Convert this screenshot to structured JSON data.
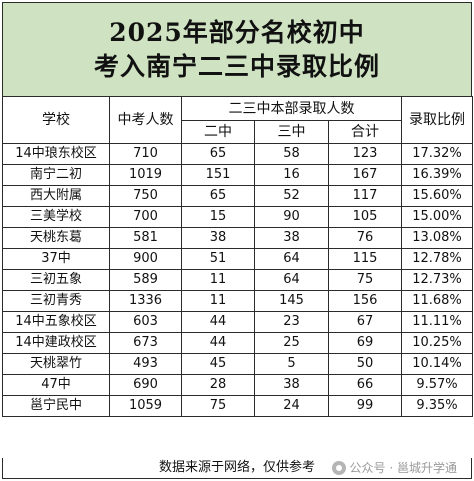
{
  "title": {
    "line1": "2025年部分名校初中",
    "line2": "考入南宁二三中录取比例"
  },
  "headers": {
    "school": "学校",
    "exam_count": "中考人数",
    "group": "二三中本部录取人数",
    "er_zhong": "二中",
    "san_zhong": "三中",
    "total": "合计",
    "ratio": "录取比例"
  },
  "rows": [
    {
      "school": "14中琅东校区",
      "exam": "710",
      "er": "65",
      "san": "58",
      "total": "123",
      "ratio": "17.32%"
    },
    {
      "school": "南宁二初",
      "exam": "1019",
      "er": "151",
      "san": "16",
      "total": "167",
      "ratio": "16.39%"
    },
    {
      "school": "西大附属",
      "exam": "750",
      "er": "65",
      "san": "52",
      "total": "117",
      "ratio": "15.60%"
    },
    {
      "school": "三美学校",
      "exam": "700",
      "er": "15",
      "san": "90",
      "total": "105",
      "ratio": "15.00%"
    },
    {
      "school": "天桃东葛",
      "exam": "581",
      "er": "38",
      "san": "38",
      "total": "76",
      "ratio": "13.08%"
    },
    {
      "school": "37中",
      "exam": "900",
      "er": "51",
      "san": "64",
      "total": "115",
      "ratio": "12.78%"
    },
    {
      "school": "三初五象",
      "exam": "589",
      "er": "11",
      "san": "64",
      "total": "75",
      "ratio": "12.73%"
    },
    {
      "school": "三初青秀",
      "exam": "1336",
      "er": "11",
      "san": "145",
      "total": "156",
      "ratio": "11.68%"
    },
    {
      "school": "14中五象校区",
      "exam": "603",
      "er": "44",
      "san": "23",
      "total": "67",
      "ratio": "11.11%"
    },
    {
      "school": "14中建政校区",
      "exam": "673",
      "er": "44",
      "san": "25",
      "total": "69",
      "ratio": "10.25%"
    },
    {
      "school": "天桃翠竹",
      "exam": "493",
      "er": "45",
      "san": "5",
      "total": "50",
      "ratio": "10.14%"
    },
    {
      "school": "47中",
      "exam": "690",
      "er": "28",
      "san": "38",
      "total": "66",
      "ratio": "9.57%"
    },
    {
      "school": "邕宁民中",
      "exam": "1059",
      "er": "75",
      "san": "24",
      "total": "99",
      "ratio": "9.35%"
    }
  ],
  "footer": {
    "note": "数据来源于网络，仅供参考",
    "watermark": "公众号 · 邕城升学通"
  },
  "colors": {
    "title_bg": "#cfe3c2",
    "border": "#2b2b2b"
  }
}
